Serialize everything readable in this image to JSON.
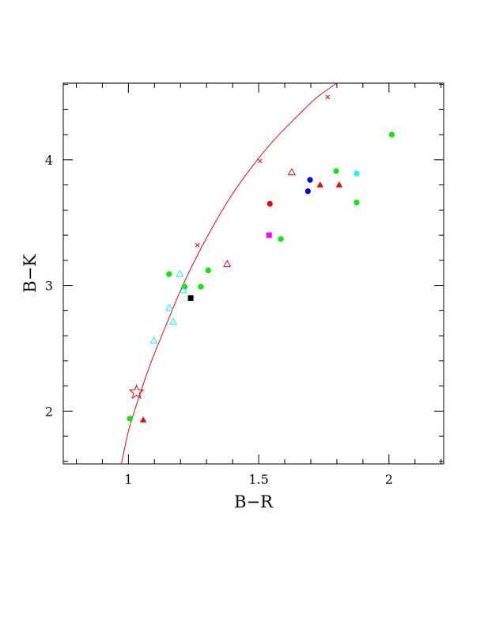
{
  "chart_data": {
    "type": "scatter",
    "title": "",
    "xlabel": "B−R",
    "ylabel": "B−K",
    "xlim": [
      0.75,
      2.21
    ],
    "ylim": [
      1.58,
      4.61
    ],
    "x_ticks": [
      1,
      1.5,
      2
    ],
    "x_tick_labels": [
      "1",
      "1.5",
      "2"
    ],
    "y_ticks": [
      2,
      3,
      4
    ],
    "y_tick_labels": [
      "2",
      "3",
      "4"
    ],
    "grid": false,
    "legend": "none",
    "colors": {
      "green": "#00ee00",
      "cyan": "#00ffff",
      "red": "#ff0000",
      "blue": "#0000ff",
      "magenta": "#ff00ff",
      "black": "#000000",
      "curve": "#ff0000"
    },
    "points": [
      {
        "x": 1.006,
        "y": 1.94,
        "marker": "circle",
        "color": "green"
      },
      {
        "x": 1.156,
        "y": 3.09,
        "marker": "circle",
        "color": "green"
      },
      {
        "x": 1.216,
        "y": 2.99,
        "marker": "circle",
        "color": "green"
      },
      {
        "x": 1.278,
        "y": 2.99,
        "marker": "circle",
        "color": "green"
      },
      {
        "x": 1.306,
        "y": 3.12,
        "marker": "circle",
        "color": "green"
      },
      {
        "x": 1.585,
        "y": 3.37,
        "marker": "circle",
        "color": "green"
      },
      {
        "x": 1.797,
        "y": 3.91,
        "marker": "circle",
        "color": "green"
      },
      {
        "x": 1.876,
        "y": 3.66,
        "marker": "circle",
        "color": "green"
      },
      {
        "x": 2.011,
        "y": 4.2,
        "marker": "circle",
        "color": "green"
      },
      {
        "x": 1.543,
        "y": 3.65,
        "marker": "circle",
        "color": "red"
      },
      {
        "x": 1.697,
        "y": 3.84,
        "marker": "circle",
        "color": "blue"
      },
      {
        "x": 1.689,
        "y": 3.75,
        "marker": "circle",
        "color": "blue"
      },
      {
        "x": 1.876,
        "y": 3.89,
        "marker": "circle",
        "color": "cyan"
      },
      {
        "x": 1.057,
        "y": 1.93,
        "marker": "filled-triangle",
        "color": "red"
      },
      {
        "x": 1.736,
        "y": 3.8,
        "marker": "filled-triangle",
        "color": "red"
      },
      {
        "x": 1.809,
        "y": 3.8,
        "marker": "filled-triangle",
        "color": "red"
      },
      {
        "x": 1.379,
        "y": 3.17,
        "marker": "open-triangle",
        "color": "red"
      },
      {
        "x": 1.627,
        "y": 3.9,
        "marker": "open-triangle",
        "color": "red"
      },
      {
        "x": 1.098,
        "y": 2.56,
        "marker": "open-triangle",
        "color": "cyan"
      },
      {
        "x": 1.157,
        "y": 2.82,
        "marker": "open-triangle",
        "color": "cyan"
      },
      {
        "x": 1.172,
        "y": 2.71,
        "marker": "open-triangle",
        "color": "cyan"
      },
      {
        "x": 1.197,
        "y": 3.09,
        "marker": "open-triangle",
        "color": "cyan"
      },
      {
        "x": 1.211,
        "y": 2.96,
        "marker": "open-triangle",
        "color": "cyan"
      },
      {
        "x": 1.239,
        "y": 2.9,
        "marker": "square",
        "color": "black"
      },
      {
        "x": 1.54,
        "y": 3.4,
        "marker": "square",
        "color": "magenta"
      },
      {
        "x": 1.031,
        "y": 2.15,
        "marker": "open-star",
        "color": "red"
      }
    ],
    "curve": {
      "color": "curve",
      "x": [
        0.973,
        0.985,
        1.0,
        1.02,
        1.05,
        1.08,
        1.11,
        1.15,
        1.2,
        1.26,
        1.33,
        1.4,
        1.48,
        1.56,
        1.64,
        1.72,
        1.8
      ],
      "y": [
        1.58,
        1.7,
        1.84,
        1.98,
        2.17,
        2.35,
        2.51,
        2.71,
        2.96,
        3.22,
        3.49,
        3.73,
        3.96,
        4.16,
        4.33,
        4.49,
        4.61
      ],
      "tick_marks": [
        {
          "x": 1.265,
          "y": 3.32
        },
        {
          "x": 1.505,
          "y": 3.99
        },
        {
          "x": 1.765,
          "y": 4.5
        }
      ]
    }
  }
}
